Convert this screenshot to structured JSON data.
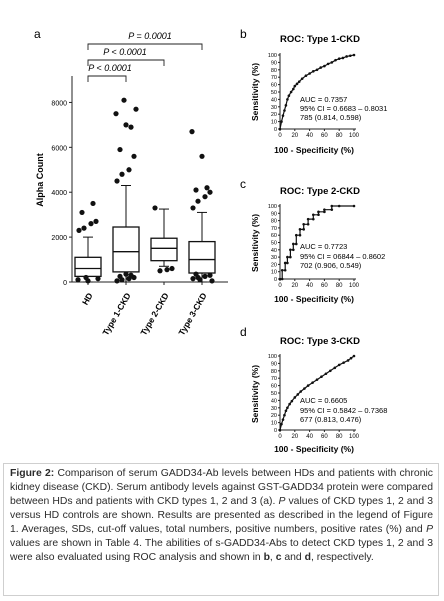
{
  "panels": {
    "a": {
      "letter": "a"
    },
    "b": {
      "letter": "b"
    },
    "c": {
      "letter": "c"
    },
    "d": {
      "letter": "d"
    }
  },
  "caption": {
    "label": "Figure 2:",
    "text": "Comparison of serum GADD34-Ab levels between HDs and patients with chronic kidney disease (CKD). Serum antibody levels against GST-GADD34 protein were compared between HDs and patients with CKD types 1, 2 and 3 (a).",
    "text2_italic": "P",
    "text2": " values of CKD types 1, 2 and 3 versus HD controls are shown. Results are presented as described in the legend of Figure 1. Averages, SDs, cut-off values, total numbers, positive numbers, positive rates (%) and ",
    "text3_italic": "P",
    "text3": " values are shown in Table 4. The abilities of s-GADD34-Abs to detect CKD types 1, 2 and 3 were also evaluated using ROC analysis and shown in ",
    "b": "b",
    "sep1": ", ",
    "c": "c",
    "sep2": " and ",
    "d": "d",
    "end": ", respectively."
  },
  "chart_data": [
    {
      "type": "box",
      "panel": "a",
      "ylabel": "Alpha Count",
      "ylim": [
        0,
        9000
      ],
      "yticks": [
        0,
        2000,
        4000,
        6000,
        8000
      ],
      "categories": [
        "HD",
        "Type 1-CKD",
        "Type 2-CKD",
        "Type 3-CKD"
      ],
      "boxes": [
        {
          "whisker_low": 0,
          "q1": 250,
          "median": 600,
          "q3": 1100,
          "whisker_high": 2000
        },
        {
          "whisker_low": 0,
          "q1": 450,
          "median": 1350,
          "q3": 2450,
          "whisker_high": 4300
        },
        {
          "whisker_low": 700,
          "q1": 950,
          "median": 1500,
          "q3": 1950,
          "whisker_high": 3250
        },
        {
          "whisker_low": 0,
          "q1": 400,
          "median": 1000,
          "q3": 1800,
          "whisker_high": 3100
        }
      ],
      "outliers": [
        [
          2300,
          2400,
          2600,
          2700,
          3100,
          3500,
          50,
          100,
          150,
          200
        ],
        [
          4500,
          4800,
          5000,
          5600,
          5900,
          6900,
          7000,
          7500,
          7700,
          8100,
          50,
          100,
          150,
          200,
          250,
          300,
          350
        ],
        [
          3300,
          500,
          550,
          600
        ],
        [
          3300,
          3600,
          3800,
          4000,
          4100,
          4200,
          5600,
          6700,
          50,
          100,
          150,
          200,
          250,
          300,
          350
        ]
      ],
      "comparisons": [
        {
          "label": "P = 0.0001",
          "from": 0,
          "to": 3
        },
        {
          "label": "P < 0.0001",
          "from": 0,
          "to": 2
        },
        {
          "label": "P < 0.0001",
          "from": 0,
          "to": 1
        }
      ]
    },
    {
      "type": "line",
      "panel": "b",
      "title": "ROC: Type 1-CKD",
      "xlabel": "100 - Specificity (%)",
      "ylabel": "Sensitivity (%)",
      "xlim": [
        0,
        100
      ],
      "ylim": [
        0,
        100
      ],
      "xticks": [
        0,
        20,
        40,
        60,
        80,
        100
      ],
      "yticks": [
        0,
        10,
        20,
        30,
        40,
        50,
        60,
        70,
        80,
        90,
        100
      ],
      "annotations": [
        "AUC = 0.7357",
        "95% CI = 0.6683 – 0.8031",
        "785 (0.814, 0.598)"
      ],
      "x": [
        0,
        2,
        4,
        6,
        8,
        10,
        12,
        15,
        18,
        20,
        23,
        26,
        30,
        35,
        40,
        45,
        50,
        55,
        60,
        65,
        70,
        75,
        80,
        85,
        90,
        95,
        100
      ],
      "y": [
        0,
        10,
        18,
        25,
        32,
        40,
        45,
        50,
        54,
        58,
        61,
        64,
        68,
        72,
        75,
        78,
        80,
        83,
        85,
        88,
        90,
        93,
        95,
        96,
        98,
        99,
        100
      ]
    },
    {
      "type": "line",
      "panel": "c",
      "title": "ROC: Type 2-CKD",
      "xlabel": "100 - Specificity (%)",
      "ylabel": "Sensitivity (%)",
      "xlim": [
        0,
        100
      ],
      "ylim": [
        0,
        100
      ],
      "xticks": [
        0,
        20,
        40,
        60,
        80,
        100
      ],
      "yticks": [
        0,
        10,
        20,
        30,
        40,
        50,
        60,
        70,
        80,
        90,
        100
      ],
      "annotations": [
        "AUC = 0.7723",
        "95% CI = 06844 – 0.8602",
        "702 (0.906, 0.549)"
      ],
      "x": [
        0,
        3,
        3,
        7,
        7,
        10,
        10,
        14,
        14,
        18,
        18,
        22,
        22,
        27,
        27,
        32,
        32,
        38,
        38,
        45,
        45,
        52,
        52,
        60,
        60,
        70,
        70,
        80,
        100
      ],
      "y": [
        0,
        0,
        12,
        12,
        22,
        22,
        30,
        30,
        40,
        40,
        48,
        48,
        60,
        60,
        68,
        68,
        75,
        75,
        82,
        82,
        88,
        88,
        92,
        92,
        95,
        95,
        100,
        100,
        100
      ]
    },
    {
      "type": "line",
      "panel": "d",
      "title": "ROC: Type 3-CKD",
      "xlabel": "100 - Specificity (%)",
      "ylabel": "Sensitivity (%)",
      "xlim": [
        0,
        100
      ],
      "ylim": [
        0,
        100
      ],
      "xticks": [
        0,
        20,
        40,
        60,
        80,
        100
      ],
      "yticks": [
        0,
        10,
        20,
        30,
        40,
        50,
        60,
        70,
        80,
        90,
        100
      ],
      "annotations": [
        "AUC = 0.6605",
        "95% CI = 0.5842 – 0.7368",
        "677 (0.813, 0.476)"
      ],
      "x": [
        0,
        2,
        4,
        6,
        8,
        10,
        13,
        16,
        20,
        24,
        28,
        33,
        38,
        44,
        50,
        56,
        62,
        68,
        74,
        80,
        86,
        92,
        96,
        100
      ],
      "y": [
        0,
        8,
        14,
        20,
        26,
        30,
        35,
        39,
        44,
        48,
        52,
        56,
        60,
        64,
        68,
        72,
        76,
        80,
        84,
        88,
        91,
        94,
        97,
        100
      ]
    }
  ]
}
